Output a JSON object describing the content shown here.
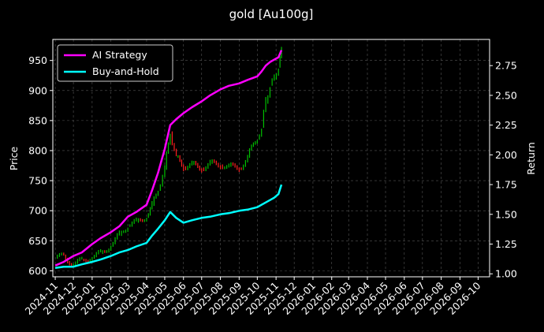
{
  "chart_data": {
    "type": "line",
    "title": "gold [Au100g]",
    "xlabel": "",
    "ylabel": "Price",
    "y2label": "Return",
    "x_ticks": [
      "2024-11",
      "2024-12",
      "2025-01",
      "2025-02",
      "2025-03",
      "2025-04",
      "2025-05",
      "2025-06",
      "2025-07",
      "2025-08",
      "2025-09",
      "2025-10",
      "2025-11",
      "2025-12",
      "2026-01",
      "2026-02",
      "2026-03",
      "2026-04",
      "2026-05",
      "2026-06",
      "2026-07",
      "2026-08",
      "2026-09",
      "2026-10"
    ],
    "xlim": [
      "2024-10-28",
      "2026-10-20"
    ],
    "ylim": [
      590,
      985
    ],
    "y2lim": [
      0.975,
      2.97
    ],
    "y_ticks": [
      600,
      650,
      700,
      750,
      800,
      850,
      900,
      950
    ],
    "y2_ticks": [
      "1.00",
      "1.25",
      "1.50",
      "1.75",
      "2.00",
      "2.25",
      "2.50",
      "2.75"
    ],
    "grid": true,
    "legend_position": "top-left",
    "colors": {
      "background": "#000000",
      "up": "#00c000",
      "down": "#ff2020",
      "ai": "#ff00ff",
      "bh": "#00ffff",
      "grid": "#555555"
    },
    "price": {
      "name": "Price",
      "dates": [
        "2024-11-01",
        "2024-11-15",
        "2024-12-01",
        "2024-12-15",
        "2025-01-01",
        "2025-01-15",
        "2025-02-01",
        "2025-02-15",
        "2025-03-01",
        "2025-03-15",
        "2025-04-01",
        "2025-04-10",
        "2025-04-20",
        "2025-05-01",
        "2025-05-10",
        "2025-05-20",
        "2025-06-01",
        "2025-06-15",
        "2025-07-01",
        "2025-07-15",
        "2025-08-01",
        "2025-08-15",
        "2025-09-01",
        "2025-09-15",
        "2025-10-01",
        "2025-10-08",
        "2025-10-15",
        "2025-10-22",
        "2025-10-29",
        "2025-11-05",
        "2025-11-10"
      ],
      "values": [
        622,
        625,
        610,
        618,
        622,
        630,
        642,
        660,
        675,
        682,
        690,
        710,
        735,
        770,
        830,
        790,
        772,
        778,
        770,
        780,
        775,
        775,
        770,
        790,
        820,
        840,
        880,
        910,
        920,
        940,
        965
      ]
    },
    "series": [
      {
        "name": "AI Strategy",
        "color": "#ff00ff",
        "dates": [
          "2024-11-01",
          "2024-11-15",
          "2024-12-01",
          "2024-12-15",
          "2025-01-01",
          "2025-01-15",
          "2025-02-01",
          "2025-02-15",
          "2025-03-01",
          "2025-03-15",
          "2025-04-01",
          "2025-04-10",
          "2025-04-20",
          "2025-05-01",
          "2025-05-10",
          "2025-05-20",
          "2025-06-01",
          "2025-06-15",
          "2025-07-01",
          "2025-07-15",
          "2025-08-01",
          "2025-08-15",
          "2025-09-01",
          "2025-09-15",
          "2025-10-01",
          "2025-10-08",
          "2025-10-15",
          "2025-10-22",
          "2025-10-29",
          "2025-11-05",
          "2025-11-10"
        ],
        "values": [
          1.07,
          1.1,
          1.15,
          1.18,
          1.25,
          1.3,
          1.35,
          1.4,
          1.48,
          1.52,
          1.58,
          1.7,
          1.85,
          2.05,
          2.25,
          2.3,
          2.35,
          2.4,
          2.45,
          2.5,
          2.55,
          2.58,
          2.6,
          2.63,
          2.66,
          2.7,
          2.75,
          2.78,
          2.8,
          2.82,
          2.88
        ]
      },
      {
        "name": "Buy-and-Hold",
        "color": "#00ffff",
        "dates": [
          "2024-11-01",
          "2024-11-15",
          "2024-12-01",
          "2024-12-15",
          "2025-01-01",
          "2025-01-15",
          "2025-02-01",
          "2025-02-15",
          "2025-03-01",
          "2025-03-15",
          "2025-04-01",
          "2025-04-10",
          "2025-04-20",
          "2025-05-01",
          "2025-05-10",
          "2025-05-20",
          "2025-06-01",
          "2025-06-15",
          "2025-07-01",
          "2025-07-15",
          "2025-08-01",
          "2025-08-15",
          "2025-09-01",
          "2025-09-15",
          "2025-10-01",
          "2025-10-08",
          "2025-10-15",
          "2025-10-22",
          "2025-10-29",
          "2025-11-05",
          "2025-11-10"
        ],
        "values": [
          1.05,
          1.06,
          1.06,
          1.08,
          1.1,
          1.12,
          1.15,
          1.18,
          1.2,
          1.23,
          1.26,
          1.32,
          1.38,
          1.45,
          1.52,
          1.47,
          1.43,
          1.45,
          1.47,
          1.48,
          1.5,
          1.51,
          1.53,
          1.54,
          1.56,
          1.58,
          1.6,
          1.62,
          1.64,
          1.67,
          1.75
        ]
      }
    ]
  }
}
